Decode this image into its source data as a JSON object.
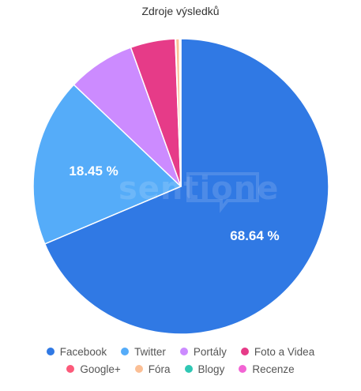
{
  "chart_data": {
    "type": "pie",
    "title": "Zdroje výsledků",
    "watermark": "sentione",
    "slices": [
      {
        "name": "Facebook",
        "value": 68.64,
        "color": "#3079e4",
        "label": "68.64 %"
      },
      {
        "name": "Twitter",
        "value": 18.45,
        "color": "#55acf9",
        "label": "18.45 %"
      },
      {
        "name": "Portály",
        "value": 7.4,
        "color": "#cc8bff",
        "label": ""
      },
      {
        "name": "Foto a Videa",
        "value": 4.9,
        "color": "#e63b88",
        "label": ""
      },
      {
        "name": "Google+",
        "value": 0.05,
        "color": "#fc5a7a",
        "label": ""
      },
      {
        "name": "Fóra",
        "value": 0.4,
        "color": "#fbbf95",
        "label": ""
      },
      {
        "name": "Blogy",
        "value": 0.08,
        "color": "#2fc7b4",
        "label": ""
      },
      {
        "name": "Recenze",
        "value": 0.08,
        "color": "#f264d4",
        "label": ""
      }
    ],
    "legend_position": "bottom",
    "legend_rows": [
      [
        "Facebook",
        "Twitter",
        "Portály",
        "Foto a Videa"
      ],
      [
        "Google+",
        "Fóra",
        "Blogy",
        "Recenze"
      ]
    ]
  }
}
